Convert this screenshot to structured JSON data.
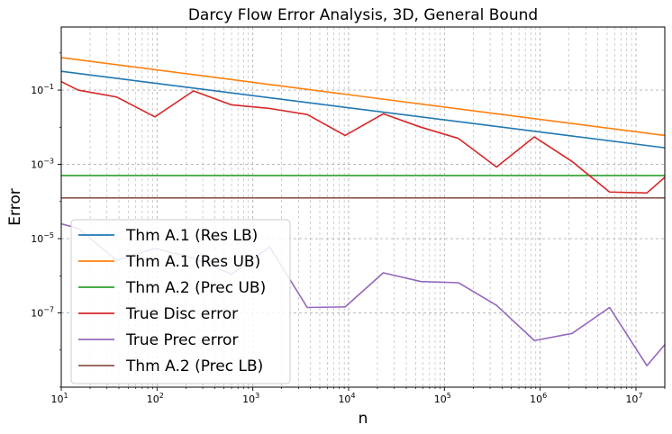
{
  "chart_data": {
    "type": "line",
    "title": "Darcy Flow Error Analysis, 3D, General Bound",
    "xlabel": "n",
    "ylabel": "Error",
    "xscale": "log",
    "yscale": "log",
    "xlim": [
      10,
      20000000
    ],
    "ylim": [
      1e-09,
      5
    ],
    "grid": true,
    "legend_position": "lower-left",
    "x_tick_labels": [
      {
        "base": "10",
        "exp": "1",
        "value": 10
      },
      {
        "base": "10",
        "exp": "2",
        "value": 100
      },
      {
        "base": "10",
        "exp": "3",
        "value": 1000
      },
      {
        "base": "10",
        "exp": "4",
        "value": 10000
      },
      {
        "base": "10",
        "exp": "5",
        "value": 100000
      },
      {
        "base": "10",
        "exp": "6",
        "value": 1000000
      },
      {
        "base": "10",
        "exp": "7",
        "value": 10000000
      }
    ],
    "y_tick_labels": [
      {
        "base": "10",
        "exp": "−7",
        "value": 1e-07
      },
      {
        "base": "10",
        "exp": "−5",
        "value": 1e-05
      },
      {
        "base": "10",
        "exp": "−3",
        "value": 0.001
      },
      {
        "base": "10",
        "exp": "−1",
        "value": 0.1
      }
    ],
    "series": [
      {
        "name": "Thm A.1 (Res LB)",
        "color": "#1f77b4",
        "x": [
          10,
          20000000
        ],
        "y": [
          0.32,
          0.0028
        ]
      },
      {
        "name": "Thm A.1 (Res UB)",
        "color": "#ff7f0e",
        "x": [
          10,
          20000000
        ],
        "y": [
          0.75,
          0.006
        ]
      },
      {
        "name": "Thm A.2 (Prec UB)",
        "color": "#2ca02c",
        "x": [
          10,
          20000000
        ],
        "y": [
          0.0005,
          0.0005
        ]
      },
      {
        "name": "True Disc error",
        "color": "#d62728",
        "x": [
          10,
          15,
          38,
          95,
          240,
          600,
          1500,
          3700,
          9200,
          23000,
          57000,
          140000,
          350000,
          870000,
          2150000,
          5300000,
          13000000,
          20000000
        ],
        "y": [
          0.17,
          0.1,
          0.065,
          0.019,
          0.095,
          0.04,
          0.032,
          0.022,
          0.006,
          0.023,
          0.01,
          0.005,
          0.00085,
          0.0055,
          0.0012,
          0.00018,
          0.00017,
          0.00045
        ]
      },
      {
        "name": "True Prec error",
        "color": "#9467bd",
        "x": [
          10,
          15,
          38,
          95,
          240,
          600,
          1500,
          3700,
          9200,
          23000,
          57000,
          140000,
          350000,
          870000,
          2150000,
          5300000,
          13000000,
          20000000
        ],
        "y": [
          2.5e-05,
          1.9e-05,
          2.6e-06,
          5.5e-06,
          3e-06,
          1.1e-06,
          6e-06,
          1.4e-07,
          1.45e-07,
          1.2e-06,
          7e-07,
          6.5e-07,
          1.6e-07,
          1.8e-08,
          2.8e-08,
          1.4e-07,
          3.8e-09,
          1.4e-08
        ]
      },
      {
        "name": "Thm A.2 (Prec LB)",
        "color": "#8c564b",
        "x": [
          10,
          20000000
        ],
        "y": [
          0.000125,
          0.000125
        ]
      }
    ]
  }
}
